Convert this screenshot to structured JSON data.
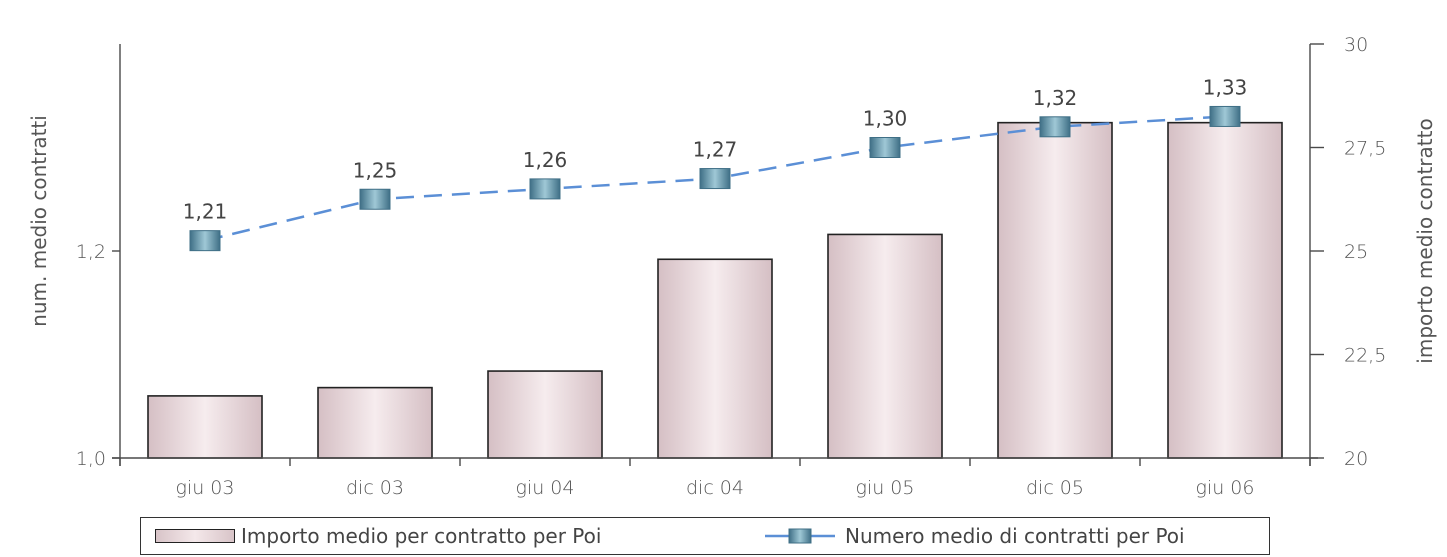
{
  "chart_data": {
    "type": "bar",
    "categories": [
      "giu 03",
      "dic 03",
      "giu 04",
      "dic 04",
      "giu 05",
      "dic 05",
      "giu 06"
    ],
    "series": [
      {
        "name": "Importo medio per contratto per Poi",
        "type": "bar",
        "axis": "right",
        "values": [
          21.5,
          21.7,
          22.1,
          24.8,
          25.4,
          28.1,
          28.1
        ]
      },
      {
        "name": "Numero medio di contratti per Poi",
        "type": "line",
        "axis": "left",
        "values": [
          1.21,
          1.25,
          1.26,
          1.27,
          1.3,
          1.32,
          1.33
        ],
        "labels": [
          "1,21",
          "1,25",
          "1,26",
          "1,27",
          "1,30",
          "1,32",
          "1,33"
        ]
      }
    ],
    "y_left": {
      "label": "num. medio contratti",
      "ylim": [
        1.0,
        1.4
      ],
      "ticks": [
        1.0,
        1.2
      ],
      "tick_labels": [
        "1,0",
        "1,2"
      ]
    },
    "y_right": {
      "label": "importo medio contratto",
      "ylim": [
        20,
        30
      ],
      "ticks": [
        20,
        22.5,
        25,
        27.5,
        30
      ],
      "tick_labels": [
        "20",
        "22,5",
        "25",
        "27,5",
        "30"
      ]
    },
    "legend_position": "bottom",
    "grid": false,
    "colors": {
      "bar_fill": "#ead8dc",
      "bar_edge": "#222222",
      "line": "#5b8fd6",
      "marker": "#6fa0b4",
      "marker_dark": "#3f6f86"
    }
  }
}
